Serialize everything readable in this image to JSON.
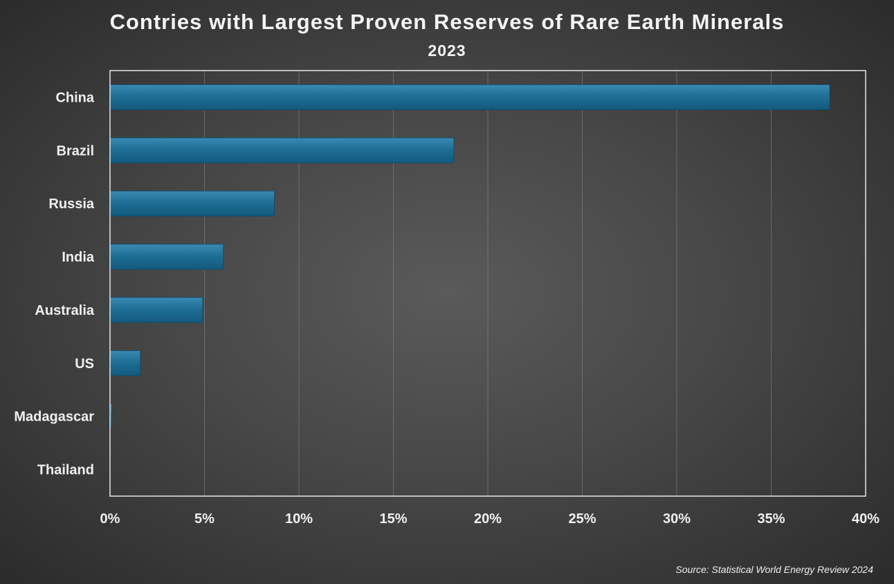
{
  "chart_data": {
    "type": "bar",
    "orientation": "horizontal",
    "title": "Contries with Largest Proven Reserves of Rare Earth Minerals",
    "subtitle": "2023",
    "categories": [
      "China",
      "Brazil",
      "Russia",
      "India",
      "Australia",
      "US",
      "Madagascar",
      "Thailand"
    ],
    "values": [
      38.1,
      18.2,
      8.7,
      6.0,
      4.9,
      1.6,
      0.1,
      0.0
    ],
    "xlim": [
      0,
      40
    ],
    "xticks": [
      "0%",
      "5%",
      "10%",
      "15%",
      "20%",
      "25%",
      "30%",
      "35%",
      "40%"
    ],
    "xlabel": "",
    "ylabel": "",
    "grid": true,
    "bar_color": "#1f6f96",
    "source": "Source: Statistical World Energy Review 2024"
  }
}
